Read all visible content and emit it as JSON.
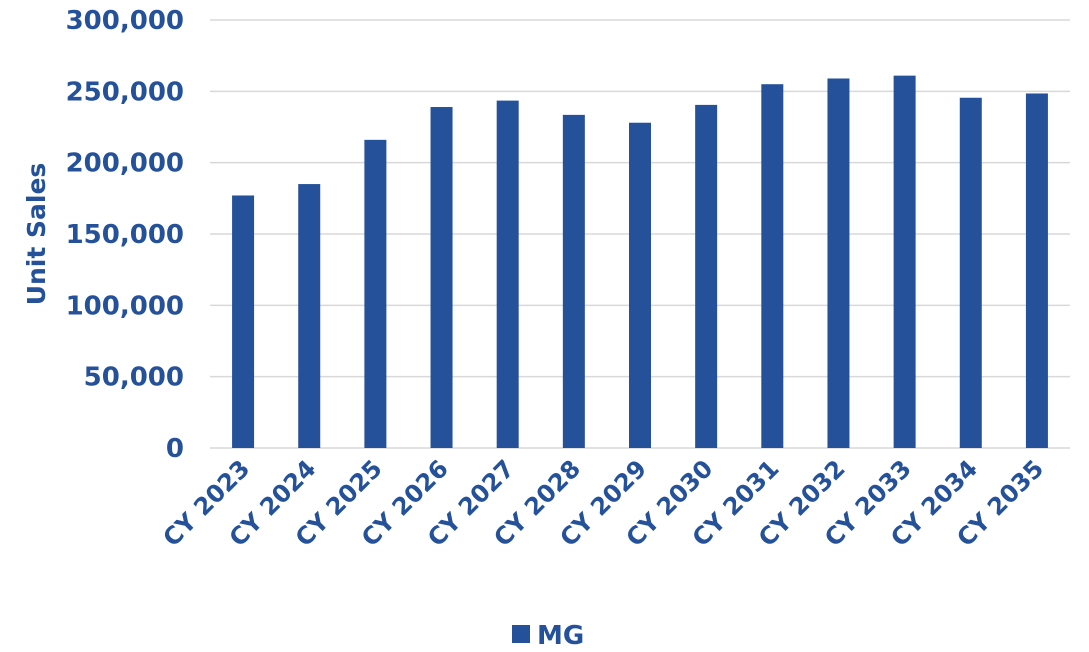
{
  "chart_data": {
    "type": "bar",
    "categories": [
      "CY 2023",
      "CY 2024",
      "CY 2025",
      "CY 2026",
      "CY 2027",
      "CY 2028",
      "CY 2029",
      "CY 2030",
      "CY 2031",
      "CY 2032",
      "CY 2033",
      "CY 2034",
      "CY 2035"
    ],
    "series": [
      {
        "name": "MG",
        "values": [
          177000,
          185000,
          216000,
          239000,
          243500,
          233500,
          228000,
          240500,
          255000,
          259000,
          261000,
          245500,
          248500
        ]
      }
    ],
    "y_ticks": [
      "0",
      "50,000",
      "100,000",
      "150,000",
      "200,000",
      "250,000",
      "300,000"
    ],
    "ylabel": "Unit Sales",
    "xlabel": "",
    "ylim": [
      0,
      300000
    ],
    "grid": true,
    "legend_position": "bottom",
    "colors": {
      "bar": "#24519A",
      "text": "#24519A",
      "grid": "#D9D9D9"
    }
  }
}
